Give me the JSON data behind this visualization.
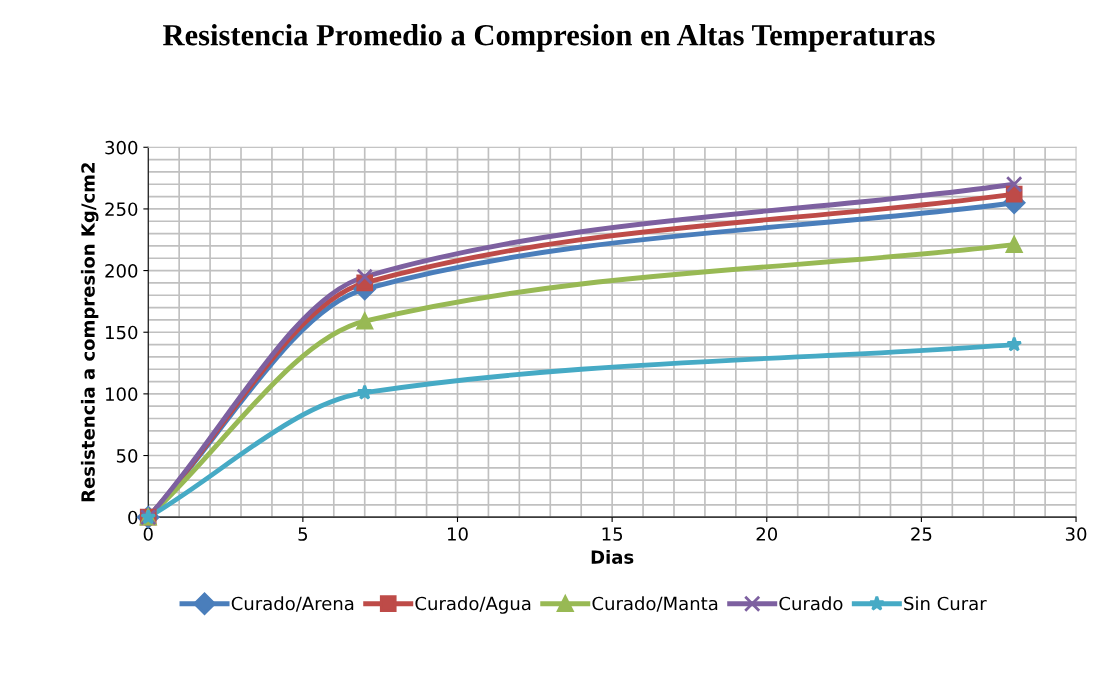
{
  "chart_data": {
    "type": "line",
    "title": "Resistencia Promedio a Compresion en Altas Temperaturas",
    "xlabel": "Dias",
    "ylabel": "Resistencia a compresion Kg/cm2",
    "x": [
      0,
      7,
      28
    ],
    "series": [
      {
        "name": "Curado/Arena",
        "color": "#4a7ebb",
        "marker": "diamond",
        "values": [
          0,
          185,
          255
        ]
      },
      {
        "name": "Curado/Agua",
        "color": "#be4b48",
        "marker": "square",
        "values": [
          0,
          190,
          262
        ]
      },
      {
        "name": "Curado/Manta",
        "color": "#98b954",
        "marker": "triangle",
        "values": [
          0,
          159,
          221
        ]
      },
      {
        "name": "Curado",
        "color": "#7d60a0",
        "marker": "cross",
        "values": [
          0,
          195,
          270
        ]
      },
      {
        "name": "Sin Curar",
        "color": "#46aac5",
        "marker": "star",
        "values": [
          0,
          101,
          140
        ]
      }
    ],
    "xlim": [
      0,
      30
    ],
    "xticks": [
      0,
      5,
      10,
      15,
      20,
      25,
      30
    ],
    "ylim": [
      0,
      300
    ],
    "yticks": [
      0,
      50,
      100,
      150,
      200,
      250,
      300
    ],
    "grid": true,
    "legend": "bottom",
    "line_style": "solid"
  }
}
